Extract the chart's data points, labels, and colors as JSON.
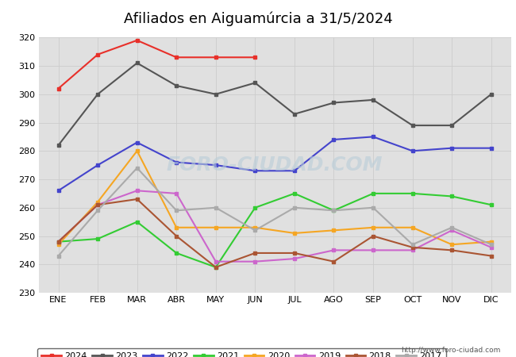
{
  "title": "Afiliados en Aiguamúrcia a 31/5/2024",
  "xlabel": "",
  "ylabel": "",
  "ylim": [
    230,
    320
  ],
  "yticks": [
    230,
    240,
    250,
    260,
    270,
    280,
    290,
    300,
    310,
    320
  ],
  "months": [
    "ENE",
    "FEB",
    "MAR",
    "ABR",
    "MAY",
    "JUN",
    "JUL",
    "AGO",
    "SEP",
    "OCT",
    "NOV",
    "DIC"
  ],
  "series": {
    "2024": {
      "color": "#e8302a",
      "data": [
        302,
        314,
        319,
        313,
        313,
        313,
        null,
        null,
        null,
        null,
        null,
        null
      ]
    },
    "2023": {
      "color": "#555555",
      "data": [
        282,
        300,
        311,
        303,
        300,
        304,
        293,
        297,
        298,
        289,
        289,
        300
      ]
    },
    "2022": {
      "color": "#4444cc",
      "data": [
        266,
        275,
        283,
        276,
        275,
        273,
        273,
        284,
        285,
        280,
        281,
        281
      ]
    },
    "2021": {
      "color": "#33cc33",
      "data": [
        248,
        249,
        255,
        244,
        239,
        260,
        265,
        259,
        265,
        265,
        264,
        261
      ]
    },
    "2020": {
      "color": "#f5a623",
      "data": [
        247,
        262,
        280,
        253,
        253,
        253,
        251,
        252,
        253,
        253,
        247,
        248
      ]
    },
    "2019": {
      "color": "#cc66cc",
      "data": [
        248,
        261,
        266,
        265,
        241,
        241,
        242,
        245,
        245,
        245,
        252,
        246
      ]
    },
    "2018": {
      "color": "#aa5533",
      "data": [
        248,
        261,
        263,
        250,
        239,
        244,
        244,
        241,
        250,
        246,
        245,
        243
      ]
    },
    "2017": {
      "color": "#aaaaaa",
      "data": [
        243,
        259,
        274,
        259,
        260,
        252,
        260,
        259,
        260,
        247,
        253,
        247
      ]
    }
  },
  "legend_order": [
    "2024",
    "2023",
    "2022",
    "2021",
    "2020",
    "2019",
    "2018",
    "2017"
  ],
  "grid_color": "#cccccc",
  "plot_bg_color": "#e0e0e0",
  "title_bg_color": "#6aafd6",
  "watermark": "FORO-CIUDAD.COM",
  "url": "http://www.foro-ciudad.com",
  "line_width": 1.5,
  "marker_size": 2.5
}
